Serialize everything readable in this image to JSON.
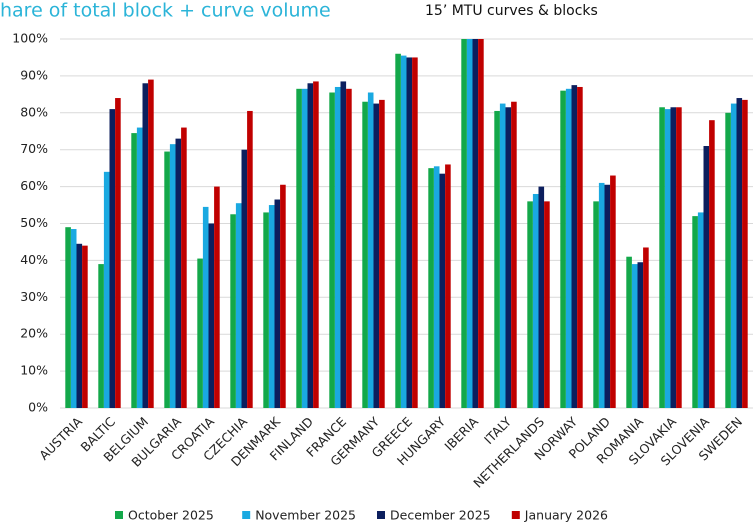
{
  "chart_data": {
    "type": "bar",
    "title": "hare of total block + curve volume",
    "subtitle": "15’ MTU curves & blocks",
    "categories": [
      "AUSTRIA",
      "BALTIC",
      "BELGIUM",
      "BULGARIA",
      "CROATIA",
      "CZECHIA",
      "DENMARK",
      "FINLAND",
      "FRANCE",
      "GERMANY",
      "GREECE",
      "HUNGARY",
      "IBERIA",
      "ITALY",
      "NETHERLANDS",
      "NORWAY",
      "POLAND",
      "ROMANIA",
      "SLOVAKIA",
      "SLOVENIA",
      "SWEDEN"
    ],
    "series": [
      {
        "name": "October 2025",
        "color": "#13a84a",
        "values": [
          49,
          39,
          74.5,
          69.5,
          40.5,
          52.5,
          53,
          86.5,
          85.5,
          83,
          96,
          65,
          100,
          80.5,
          56,
          86,
          56,
          41,
          81.5,
          52,
          80
        ]
      },
      {
        "name": "November 2025",
        "color": "#1aa9e1",
        "values": [
          48.5,
          64,
          76,
          71.5,
          54.5,
          55.5,
          55,
          86.5,
          87,
          85.5,
          95.5,
          65.5,
          100,
          82.5,
          58,
          86.5,
          61,
          39,
          81,
          53,
          82.5
        ]
      },
      {
        "name": "December 2025",
        "color": "#0c1f5e",
        "values": [
          44.5,
          81,
          88,
          73,
          50,
          70,
          56.5,
          88,
          88.5,
          82.5,
          95,
          63.5,
          100,
          81.5,
          60,
          87.5,
          60.5,
          39.5,
          81.5,
          71,
          84
        ]
      },
      {
        "name": "January 2026",
        "color": "#c00000",
        "values": [
          44,
          84,
          89,
          76,
          60,
          80.5,
          60.5,
          88.5,
          86.5,
          83.5,
          95,
          66,
          100,
          83,
          56,
          87,
          63,
          43.5,
          81.5,
          78,
          83.5
        ]
      }
    ],
    "ylim": [
      0,
      100
    ],
    "yticks": [
      {
        "value": 0,
        "label": "0%"
      },
      {
        "value": 10,
        "label": "10%"
      },
      {
        "value": 20,
        "label": "20%"
      },
      {
        "value": 30,
        "label": "30%"
      },
      {
        "value": 40,
        "label": "40%"
      },
      {
        "value": 50,
        "label": "50%"
      },
      {
        "value": 60,
        "label": "60%"
      },
      {
        "value": 70,
        "label": "70%"
      },
      {
        "value": 80,
        "label": "80%"
      },
      {
        "value": 90,
        "label": "90%"
      },
      {
        "value": 100,
        "label": "100%"
      }
    ],
    "grid": true,
    "legend": "bottom"
  }
}
